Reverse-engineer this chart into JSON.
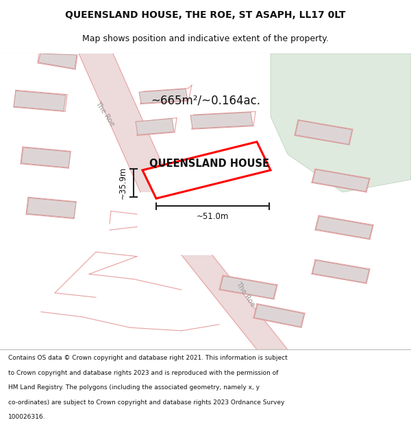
{
  "title_line1": "QUEENSLAND HOUSE, THE ROE, ST ASAPH, LL17 0LT",
  "title_line2": "Map shows position and indicative extent of the property.",
  "property_label": "QUEENSLAND HOUSE",
  "area_label": "~665m²/~0.164ac.",
  "width_label": "~51.0m",
  "height_label": "~35.9m",
  "map_bg": "#f5efef",
  "property_edge": "#ff0000",
  "green_area": "#deeade",
  "title_bg": "#ffffff",
  "footer_bg": "#ffffff",
  "road_fill": "#eddada",
  "building_fill": "#ddd5d5",
  "building_edge": "#cc9999",
  "pink_line": "#e8a0a0",
  "dim_color": "#222222",
  "footer_lines": [
    "Contains OS data © Crown copyright and database right 2021. This information is subject",
    "to Crown copyright and database rights 2023 and is reproduced with the permission of",
    "HM Land Registry. The polygons (including the associated geometry, namely x, y",
    "co-ordinates) are subject to Crown copyright and database rights 2023 Ordnance Survey",
    "100026316."
  ]
}
